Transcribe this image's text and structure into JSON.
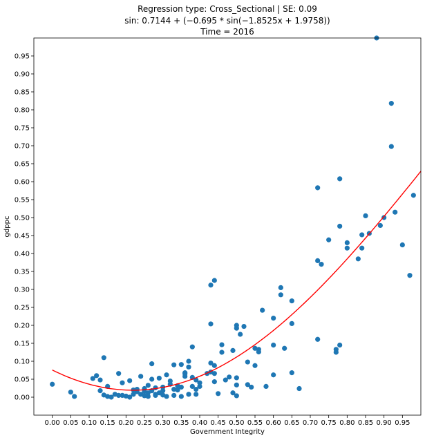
{
  "chart_data": {
    "type": "scatter",
    "title_lines": [
      "Regression type: Cross_Sectional | SE: 0.09",
      "sin: 0.7144 + (−0.695 * sin(−1.8525x + 1.9758))",
      "Time = 2016"
    ],
    "xlabel": "Government Integrity",
    "ylabel": "gdppc",
    "xlim": [
      -0.05,
      1.0
    ],
    "ylim": [
      -0.05,
      1.0
    ],
    "xticks": [
      "0.00",
      "0.05",
      "0.10",
      "0.15",
      "0.20",
      "0.25",
      "0.30",
      "0.35",
      "0.40",
      "0.45",
      "0.50",
      "0.55",
      "0.60",
      "0.65",
      "0.70",
      "0.75",
      "0.80",
      "0.85",
      "0.90",
      "0.95"
    ],
    "yticks": [
      "0.00",
      "0.05",
      "0.10",
      "0.15",
      "0.20",
      "0.25",
      "0.30",
      "0.35",
      "0.40",
      "0.45",
      "0.50",
      "0.55",
      "0.60",
      "0.65",
      "0.70",
      "0.75",
      "0.80",
      "0.85",
      "0.90",
      "0.95"
    ],
    "grid": false,
    "colors": {
      "points": "#1f77b4",
      "fit": "#ff0000"
    },
    "series": [
      {
        "kind": "scatter",
        "points": [
          [
            0.0,
            0.036
          ],
          [
            0.05,
            0.014
          ],
          [
            0.06,
            0.002
          ],
          [
            0.11,
            0.052
          ],
          [
            0.12,
            0.06
          ],
          [
            0.13,
            0.048
          ],
          [
            0.13,
            0.018
          ],
          [
            0.14,
            0.006
          ],
          [
            0.14,
            0.11
          ],
          [
            0.15,
            0.002
          ],
          [
            0.15,
            0.03
          ],
          [
            0.16,
            0.0
          ],
          [
            0.17,
            0.008
          ],
          [
            0.18,
            0.066
          ],
          [
            0.18,
            0.005
          ],
          [
            0.19,
            0.04
          ],
          [
            0.19,
            0.005
          ],
          [
            0.2,
            0.003
          ],
          [
            0.21,
            0.046
          ],
          [
            0.21,
            0.0
          ],
          [
            0.22,
            0.02
          ],
          [
            0.22,
            0.008
          ],
          [
            0.23,
            0.015
          ],
          [
            0.23,
            0.022
          ],
          [
            0.24,
            0.008
          ],
          [
            0.24,
            0.058
          ],
          [
            0.25,
            0.016
          ],
          [
            0.25,
            0.004
          ],
          [
            0.25,
            0.024
          ],
          [
            0.26,
            0.012
          ],
          [
            0.26,
            0.002
          ],
          [
            0.26,
            0.033
          ],
          [
            0.27,
            0.093
          ],
          [
            0.27,
            0.05
          ],
          [
            0.27,
            0.018
          ],
          [
            0.28,
            0.008
          ],
          [
            0.28,
            0.026
          ],
          [
            0.28,
            0.005
          ],
          [
            0.29,
            0.012
          ],
          [
            0.29,
            0.053
          ],
          [
            0.3,
            0.018
          ],
          [
            0.3,
            0.028
          ],
          [
            0.3,
            0.006
          ],
          [
            0.31,
            0.062
          ],
          [
            0.31,
            0.002
          ],
          [
            0.32,
            0.036
          ],
          [
            0.32,
            0.045
          ],
          [
            0.33,
            0.09
          ],
          [
            0.33,
            0.022
          ],
          [
            0.33,
            0.005
          ],
          [
            0.34,
            0.032
          ],
          [
            0.34,
            0.02
          ],
          [
            0.35,
            0.091
          ],
          [
            0.35,
            0.002
          ],
          [
            0.35,
            0.028
          ],
          [
            0.36,
            0.068
          ],
          [
            0.36,
            0.058
          ],
          [
            0.36,
            0.065
          ],
          [
            0.37,
            0.084
          ],
          [
            0.37,
            0.1
          ],
          [
            0.37,
            0.008
          ],
          [
            0.38,
            0.14
          ],
          [
            0.38,
            0.055
          ],
          [
            0.38,
            0.03
          ],
          [
            0.39,
            0.022
          ],
          [
            0.39,
            0.048
          ],
          [
            0.39,
            0.008
          ],
          [
            0.4,
            0.04
          ],
          [
            0.4,
            0.03
          ],
          [
            0.42,
            0.066
          ],
          [
            0.43,
            0.07
          ],
          [
            0.43,
            0.095
          ],
          [
            0.43,
            0.204
          ],
          [
            0.43,
            0.312
          ],
          [
            0.44,
            0.088
          ],
          [
            0.44,
            0.066
          ],
          [
            0.44,
            0.043
          ],
          [
            0.44,
            0.325
          ],
          [
            0.45,
            0.01
          ],
          [
            0.46,
            0.125
          ],
          [
            0.46,
            0.146
          ],
          [
            0.47,
            0.048
          ],
          [
            0.48,
            0.056
          ],
          [
            0.49,
            0.13
          ],
          [
            0.49,
            0.012
          ],
          [
            0.5,
            0.2
          ],
          [
            0.5,
            0.192
          ],
          [
            0.5,
            0.034
          ],
          [
            0.5,
            0.054
          ],
          [
            0.5,
            0.004
          ],
          [
            0.51,
            0.175
          ],
          [
            0.52,
            0.197
          ],
          [
            0.53,
            0.098
          ],
          [
            0.53,
            0.035
          ],
          [
            0.54,
            0.028
          ],
          [
            0.55,
            0.136
          ],
          [
            0.55,
            0.088
          ],
          [
            0.56,
            0.133
          ],
          [
            0.56,
            0.126
          ],
          [
            0.57,
            0.242
          ],
          [
            0.58,
            0.03
          ],
          [
            0.6,
            0.22
          ],
          [
            0.6,
            0.145
          ],
          [
            0.6,
            0.062
          ],
          [
            0.62,
            0.305
          ],
          [
            0.62,
            0.285
          ],
          [
            0.63,
            0.136
          ],
          [
            0.65,
            0.268
          ],
          [
            0.65,
            0.205
          ],
          [
            0.65,
            0.068
          ],
          [
            0.67,
            0.024
          ],
          [
            0.72,
            0.583
          ],
          [
            0.72,
            0.38
          ],
          [
            0.72,
            0.161
          ],
          [
            0.73,
            0.37
          ],
          [
            0.75,
            0.438
          ],
          [
            0.77,
            0.133
          ],
          [
            0.77,
            0.125
          ],
          [
            0.78,
            0.608
          ],
          [
            0.78,
            0.476
          ],
          [
            0.78,
            0.145
          ],
          [
            0.8,
            0.43
          ],
          [
            0.8,
            0.415
          ],
          [
            0.83,
            0.385
          ],
          [
            0.84,
            0.452
          ],
          [
            0.84,
            0.415
          ],
          [
            0.85,
            0.505
          ],
          [
            0.86,
            0.456
          ],
          [
            0.88,
            1.0
          ],
          [
            0.89,
            0.478
          ],
          [
            0.9,
            0.5
          ],
          [
            0.92,
            0.818
          ],
          [
            0.92,
            0.698
          ],
          [
            0.93,
            0.515
          ],
          [
            0.95,
            0.424
          ],
          [
            0.97,
            0.339
          ],
          [
            0.98,
            0.562
          ]
        ]
      },
      {
        "kind": "fit",
        "name": "",
        "x_range": [
          0.0,
          1.0
        ],
        "equation": {
          "a": 0.7144,
          "b": -0.695,
          "c": -1.8525,
          "d": 1.9758
        }
      }
    ]
  }
}
